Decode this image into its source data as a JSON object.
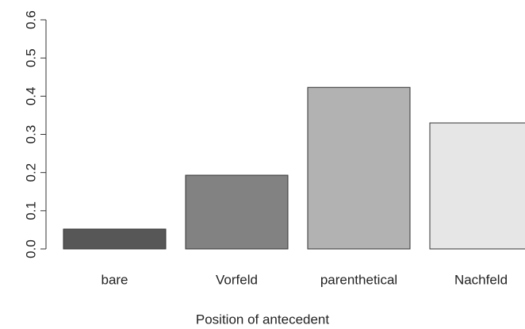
{
  "chart_data": {
    "type": "bar",
    "x_label": "Position of antecedent",
    "categories": [
      "bare",
      "Vorfeld",
      "parenthetical",
      "Nachfeld"
    ],
    "values": [
      0.052,
      0.193,
      0.423,
      0.33
    ],
    "colors": [
      "#575757",
      "#828282",
      "#b2b2b2",
      "#e6e6e6"
    ],
    "ylim": [
      0,
      0.6
    ],
    "yticks": [
      {
        "value": 0,
        "label": "0.0"
      },
      0.1,
      0.2,
      0.3,
      0.4,
      0.5,
      0.6
    ]
  }
}
